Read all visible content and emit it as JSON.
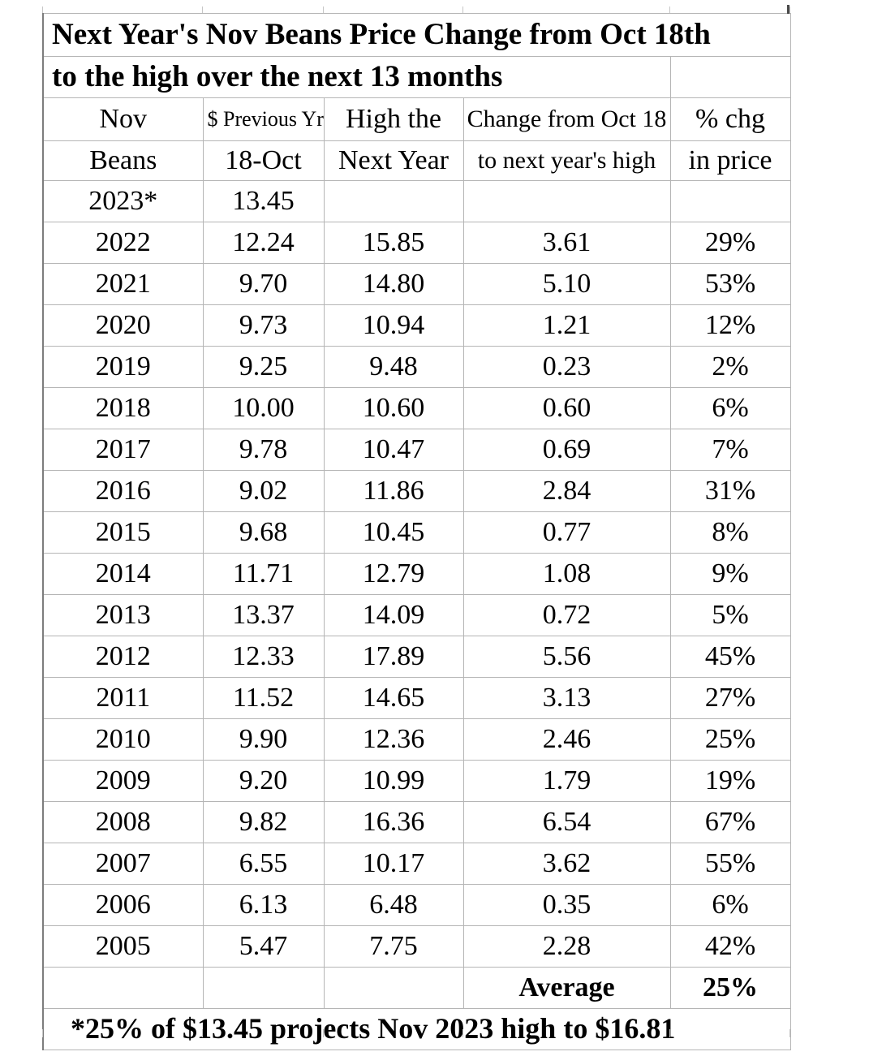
{
  "sheet": {
    "title_line1": "Next Year's Nov Beans Price Change from Oct 18th",
    "title_line2": "to the high over the next 13 months",
    "columns": [
      {
        "line1": "Nov",
        "line2": "Beans"
      },
      {
        "line1": "$ Previous Yr",
        "line2": "18-Oct"
      },
      {
        "line1": "High the",
        "line2": "Next Year"
      },
      {
        "line1": "Change from Oct 18",
        "line2": "to next year's high"
      },
      {
        "line1": "% chg",
        "line2": "in price"
      }
    ],
    "rows": [
      {
        "year": "2023*",
        "oct18": "13.45",
        "high": "",
        "change": "",
        "pct": ""
      },
      {
        "year": "2022",
        "oct18": "12.24",
        "high": "15.85",
        "change": "3.61",
        "pct": "29%"
      },
      {
        "year": "2021",
        "oct18": "9.70",
        "high": "14.80",
        "change": "5.10",
        "pct": "53%"
      },
      {
        "year": "2020",
        "oct18": "9.73",
        "high": "10.94",
        "change": "1.21",
        "pct": "12%"
      },
      {
        "year": "2019",
        "oct18": "9.25",
        "high": "9.48",
        "change": "0.23",
        "pct": "2%"
      },
      {
        "year": "2018",
        "oct18": "10.00",
        "high": "10.60",
        "change": "0.60",
        "pct": "6%"
      },
      {
        "year": "2017",
        "oct18": "9.78",
        "high": "10.47",
        "change": "0.69",
        "pct": "7%"
      },
      {
        "year": "2016",
        "oct18": "9.02",
        "high": "11.86",
        "change": "2.84",
        "pct": "31%"
      },
      {
        "year": "2015",
        "oct18": "9.68",
        "high": "10.45",
        "change": "0.77",
        "pct": "8%"
      },
      {
        "year": "2014",
        "oct18": "11.71",
        "high": "12.79",
        "change": "1.08",
        "pct": "9%"
      },
      {
        "year": "2013",
        "oct18": "13.37",
        "high": "14.09",
        "change": "0.72",
        "pct": "5%"
      },
      {
        "year": "2012",
        "oct18": "12.33",
        "high": "17.89",
        "change": "5.56",
        "pct": "45%"
      },
      {
        "year": "2011",
        "oct18": "11.52",
        "high": "14.65",
        "change": "3.13",
        "pct": "27%"
      },
      {
        "year": "2010",
        "oct18": "9.90",
        "high": "12.36",
        "change": "2.46",
        "pct": "25%"
      },
      {
        "year": "2009",
        "oct18": "9.20",
        "high": "10.99",
        "change": "1.79",
        "pct": "19%"
      },
      {
        "year": "2008",
        "oct18": "9.82",
        "high": "16.36",
        "change": "6.54",
        "pct": "67%"
      },
      {
        "year": "2007",
        "oct18": "6.55",
        "high": "10.17",
        "change": "3.62",
        "pct": "55%"
      },
      {
        "year": "2006",
        "oct18": "6.13",
        "high": "6.48",
        "change": "0.35",
        "pct": "6%"
      },
      {
        "year": "2005",
        "oct18": "5.47",
        "high": "7.75",
        "change": "2.28",
        "pct": "42%"
      }
    ],
    "summary": {
      "label": "Average",
      "value": "25%"
    },
    "footnote": "*25% of $13.45 projects Nov 2023 high to $16.81",
    "colors": {
      "grid_line": "#b5b5b5",
      "outer_border": "#8a8a8a",
      "text": "#000000",
      "background": "#ffffff"
    }
  }
}
